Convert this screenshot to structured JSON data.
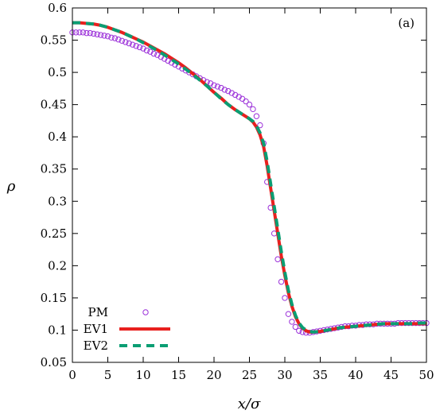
{
  "chart_data": {
    "type": "line",
    "panel_label": "(a)",
    "xlabel": "x/σ",
    "ylabel": "ρ",
    "xlim": [
      0,
      50
    ],
    "ylim": [
      0.05,
      0.6
    ],
    "x_ticks": [
      0,
      5,
      10,
      15,
      20,
      25,
      30,
      35,
      40,
      45,
      50
    ],
    "y_ticks": [
      0.05,
      0.1,
      0.15,
      0.2,
      0.25,
      0.3,
      0.35,
      0.4,
      0.45,
      0.5,
      0.55,
      0.6
    ],
    "grid": false,
    "legend_position": "bottom-left",
    "series": [
      {
        "name": "PM",
        "style": "open-circles",
        "color": "#9b30d9",
        "x": [
          0,
          0.5,
          1,
          1.5,
          2,
          2.5,
          3,
          3.5,
          4,
          4.5,
          5,
          5.5,
          6,
          6.5,
          7,
          7.5,
          8,
          8.5,
          9,
          9.5,
          10,
          10.5,
          11,
          11.5,
          12,
          12.5,
          13,
          13.5,
          14,
          14.5,
          15,
          15.5,
          16,
          16.5,
          17,
          17.5,
          18,
          18.5,
          19,
          19.5,
          20,
          20.5,
          21,
          21.5,
          22,
          22.5,
          23,
          23.5,
          24,
          24.5,
          25,
          25.5,
          26,
          26.5,
          27,
          27.5,
          28,
          28.5,
          29,
          29.5,
          30,
          30.5,
          31,
          31.5,
          32,
          32.5,
          33,
          33.5,
          34,
          34.5,
          35,
          35.5,
          36,
          36.5,
          37,
          37.5,
          38,
          38.5,
          39,
          39.5,
          40,
          40.5,
          41,
          41.5,
          42,
          42.5,
          43,
          43.5,
          44,
          44.5,
          45,
          45.5,
          46,
          46.5,
          47,
          47.5,
          48,
          48.5,
          49,
          49.5,
          50
        ],
        "y": [
          0.562,
          0.562,
          0.562,
          0.562,
          0.561,
          0.561,
          0.56,
          0.559,
          0.558,
          0.557,
          0.556,
          0.554,
          0.553,
          0.551,
          0.549,
          0.547,
          0.545,
          0.543,
          0.541,
          0.539,
          0.537,
          0.534,
          0.532,
          0.529,
          0.527,
          0.524,
          0.521,
          0.518,
          0.515,
          0.512,
          0.509,
          0.506,
          0.503,
          0.5,
          0.497,
          0.494,
          0.491,
          0.488,
          0.485,
          0.483,
          0.48,
          0.478,
          0.476,
          0.473,
          0.471,
          0.468,
          0.465,
          0.462,
          0.459,
          0.455,
          0.45,
          0.443,
          0.432,
          0.418,
          0.39,
          0.33,
          0.29,
          0.25,
          0.21,
          0.175,
          0.15,
          0.125,
          0.113,
          0.105,
          0.099,
          0.097,
          0.096,
          0.096,
          0.097,
          0.098,
          0.099,
          0.1,
          0.101,
          0.102,
          0.103,
          0.104,
          0.105,
          0.106,
          0.106,
          0.107,
          0.107,
          0.108,
          0.108,
          0.109,
          0.109,
          0.109,
          0.11,
          0.11,
          0.11,
          0.11,
          0.11,
          0.11,
          0.111,
          0.111,
          0.111,
          0.111,
          0.111,
          0.111,
          0.111,
          0.111,
          0.111
        ]
      },
      {
        "name": "EV1",
        "style": "solid",
        "color": "#e8201e",
        "x": [
          0,
          1,
          2,
          3,
          4,
          5,
          6,
          7,
          8,
          9,
          10,
          11,
          12,
          13,
          14,
          15,
          16,
          17,
          18,
          19,
          20,
          21,
          22,
          23,
          24,
          25,
          25.5,
          26,
          26.5,
          27,
          27.5,
          28,
          28.5,
          29,
          29.5,
          30,
          30.5,
          31,
          31.5,
          32,
          32.5,
          33,
          33.5,
          34,
          35,
          36,
          37,
          38,
          39,
          40,
          41,
          42,
          43,
          44,
          45,
          46,
          47,
          48,
          49,
          50
        ],
        "y": [
          0.577,
          0.577,
          0.576,
          0.575,
          0.573,
          0.57,
          0.566,
          0.562,
          0.557,
          0.552,
          0.547,
          0.541,
          0.535,
          0.529,
          0.522,
          0.515,
          0.507,
          0.498,
          0.489,
          0.479,
          0.469,
          0.46,
          0.45,
          0.442,
          0.435,
          0.428,
          0.423,
          0.415,
          0.403,
          0.385,
          0.355,
          0.32,
          0.285,
          0.25,
          0.215,
          0.185,
          0.158,
          0.137,
          0.121,
          0.11,
          0.103,
          0.099,
          0.097,
          0.097,
          0.098,
          0.1,
          0.102,
          0.104,
          0.105,
          0.106,
          0.107,
          0.108,
          0.109,
          0.11,
          0.11,
          0.11,
          0.11,
          0.11,
          0.11,
          0.11
        ]
      },
      {
        "name": "EV2",
        "style": "dashed",
        "color": "#0a9e73",
        "x": [
          0,
          1,
          2,
          3,
          4,
          5,
          6,
          7,
          8,
          9,
          10,
          11,
          12,
          13,
          14,
          15,
          16,
          17,
          18,
          19,
          20,
          21,
          22,
          23,
          24,
          25,
          25.5,
          26,
          26.5,
          27,
          27.5,
          28,
          28.5,
          29,
          29.5,
          30,
          30.5,
          31,
          31.5,
          32,
          32.5,
          33,
          33.5,
          34,
          35,
          36,
          37,
          38,
          39,
          40,
          41,
          42,
          43,
          44,
          45,
          46,
          47,
          48,
          49,
          50
        ],
        "y": [
          0.577,
          0.577,
          0.576,
          0.575,
          0.573,
          0.57,
          0.566,
          0.562,
          0.557,
          0.552,
          0.546,
          0.54,
          0.534,
          0.527,
          0.52,
          0.513,
          0.505,
          0.497,
          0.488,
          0.479,
          0.469,
          0.459,
          0.45,
          0.442,
          0.435,
          0.428,
          0.424,
          0.417,
          0.406,
          0.39,
          0.362,
          0.327,
          0.292,
          0.257,
          0.222,
          0.19,
          0.162,
          0.14,
          0.123,
          0.111,
          0.104,
          0.1,
          0.098,
          0.097,
          0.098,
          0.1,
          0.102,
          0.104,
          0.105,
          0.106,
          0.107,
          0.108,
          0.109,
          0.11,
          0.11,
          0.11,
          0.11,
          0.11,
          0.111,
          0.111
        ]
      }
    ]
  }
}
